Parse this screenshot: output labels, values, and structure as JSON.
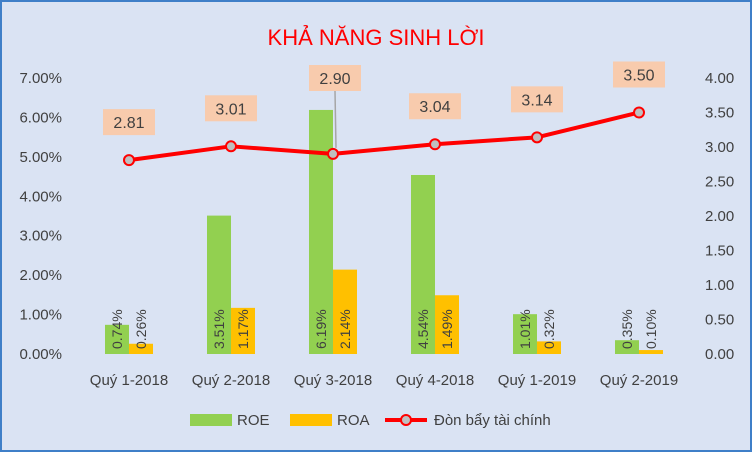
{
  "chart_data": {
    "type": "bar+line",
    "title": "KHẢ NĂNG SINH LỜI",
    "categories": [
      "Quý 1-2018",
      "Quý 2-2018",
      "Quý 3-2018",
      "Quý 4-2018",
      "Quý 1-2019",
      "Quý 2-2019"
    ],
    "series": [
      {
        "name": "ROE",
        "type": "bar",
        "axis": "left",
        "color": "#92d050",
        "values": [
          0.74,
          3.51,
          6.19,
          4.54,
          1.01,
          0.35
        ],
        "labels": [
          "0.74%",
          "3.51%",
          "6.19%",
          "4.54%",
          "1.01%",
          "0.35%"
        ]
      },
      {
        "name": "ROA",
        "type": "bar",
        "axis": "left",
        "color": "#ffc000",
        "values": [
          0.26,
          1.17,
          2.14,
          1.49,
          0.32,
          0.1
        ],
        "labels": [
          "0.26%",
          "1.17%",
          "2.14%",
          "1.49%",
          "0.32%",
          "0.10%"
        ]
      },
      {
        "name": "Đòn bẩy tài chính",
        "type": "line",
        "axis": "right",
        "color": "#ff0000",
        "values": [
          2.81,
          3.01,
          2.9,
          3.04,
          3.14,
          3.5
        ],
        "labels": [
          "2.81",
          "3.01",
          "2.90",
          "3.04",
          "3.14",
          "3.50"
        ]
      }
    ],
    "y_left": {
      "min": 0,
      "max": 7,
      "step": 1,
      "tick_labels": [
        "0.00%",
        "1.00%",
        "2.00%",
        "3.00%",
        "4.00%",
        "5.00%",
        "6.00%",
        "7.00%"
      ]
    },
    "y_right": {
      "min": 0,
      "max": 4,
      "step": 0.5,
      "tick_labels": [
        "0.00",
        "0.50",
        "1.00",
        "1.50",
        "2.00",
        "2.50",
        "3.00",
        "3.50",
        "4.00"
      ]
    },
    "legend_position": "bottom",
    "grid": false
  },
  "colors": {
    "background": "#dae3f3",
    "border": "#3f7fc8",
    "label_box": "#f8cbad",
    "marker_fill": "#bfbfbf",
    "text": "#404040"
  }
}
